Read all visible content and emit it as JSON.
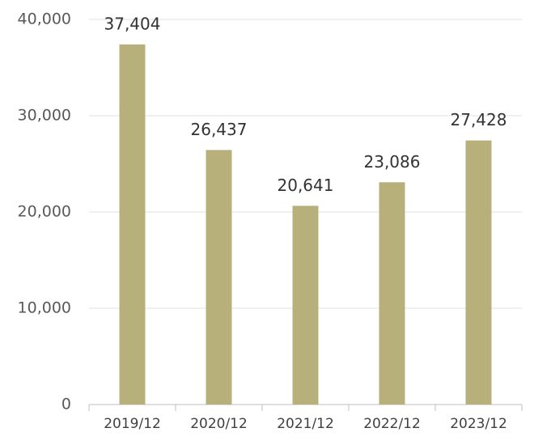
{
  "chart_data": {
    "type": "bar",
    "categories": [
      "2019/12",
      "2020/12",
      "2021/12",
      "2022/12",
      "2023/12"
    ],
    "values": [
      37404,
      26437,
      20641,
      23086,
      27428
    ],
    "value_labels": [
      "37,404",
      "26,437",
      "20,641",
      "23,086",
      "27,428"
    ],
    "color": "#b8b07a",
    "ylim": [
      0,
      40000
    ],
    "yticks": [
      0,
      {
        "value": 10000,
        "label": "10,000"
      },
      {
        "value": 20000,
        "label": "20,000"
      },
      {
        "value": 30000,
        "label": "30,000"
      },
      {
        "value": 40000,
        "label": "40,000"
      }
    ],
    "grid": true
  }
}
